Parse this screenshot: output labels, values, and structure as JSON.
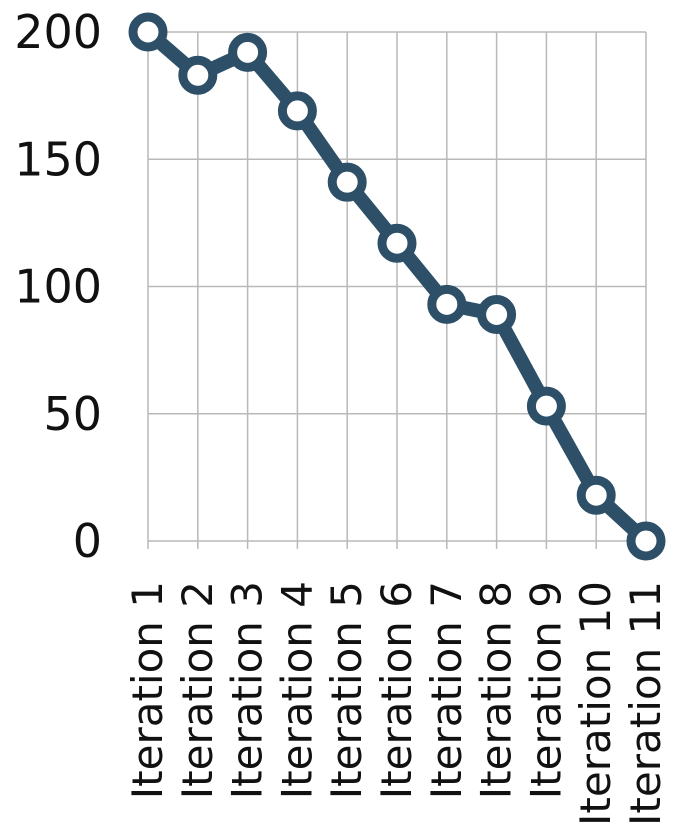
{
  "chart_data": {
    "type": "line",
    "title": "",
    "xlabel": "",
    "ylabel": "",
    "categories": [
      "Iteration 1",
      "Iteration 2",
      "Iteration 3",
      "Iteration 4",
      "Iteration 5",
      "Iteration 6",
      "Iteration 7",
      "Iteration 8",
      "Iteration 9",
      "Iteration 10",
      "Iteration 11"
    ],
    "series": [
      {
        "values": [
          200,
          183,
          192,
          169,
          141,
          117,
          93,
          89,
          53,
          18,
          0
        ]
      }
    ],
    "ylim": [
      0,
      200
    ],
    "yticks": [
      "0",
      "50",
      "100",
      "150",
      "200"
    ],
    "grid": true,
    "legend": "none",
    "colors": {
      "line": "#2d4f67",
      "marker_fill": "#ffffff",
      "grid": "#b9b9b9",
      "text": "#111111"
    }
  }
}
